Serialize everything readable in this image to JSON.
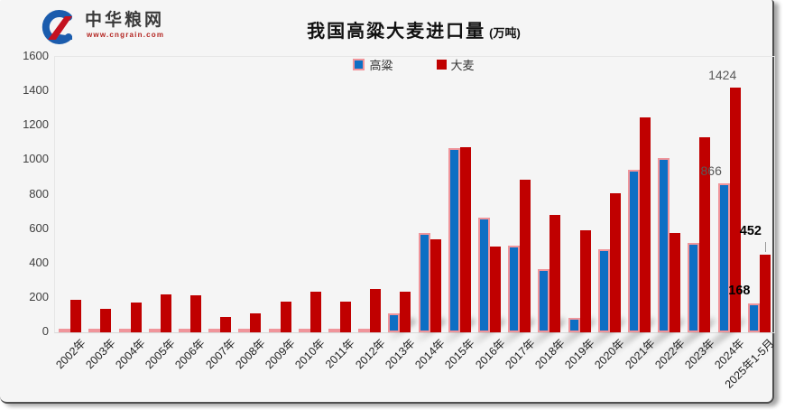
{
  "logo": {
    "name": "中华粮网",
    "url": "www.cngrain.com"
  },
  "chart_data": {
    "type": "bar",
    "title": "我国高粱大麦进口量",
    "title_unit": "(万吨)",
    "ylabel": "",
    "xlabel": "",
    "ylim": [
      0,
      1600
    ],
    "ytick_step": 200,
    "yticks": [
      0,
      200,
      400,
      600,
      800,
      1000,
      1200,
      1400,
      1600
    ],
    "grid": false,
    "legend_position": "top-center",
    "categories": [
      "2002年",
      "2003年",
      "2004年",
      "2005年",
      "2006年",
      "2007年",
      "2008年",
      "2009年",
      "2010年",
      "2011年",
      "2012年",
      "2013年",
      "2014年",
      "2015年",
      "2016年",
      "2017年",
      "2018年",
      "2019年",
      "2020年",
      "2021年",
      "2022年",
      "2023年",
      "2024年",
      "2025年1-5月"
    ],
    "series": [
      {
        "name": "高粱",
        "color": "#0d6fc4",
        "border_color": "#f0959b",
        "values": [
          2,
          2,
          2,
          2,
          2,
          2,
          2,
          2,
          2,
          2,
          5,
          108,
          578,
          1070,
          665,
          506,
          365,
          83,
          481,
          942,
          1014,
          520,
          866,
          168
        ]
      },
      {
        "name": "大麦",
        "color": "#c00000",
        "values": [
          190,
          136,
          171,
          218,
          213,
          91,
          108,
          176,
          237,
          178,
          253,
          234,
          541,
          1073,
          500,
          886,
          682,
          593,
          808,
          1248,
          576,
          1132,
          1424,
          452
        ]
      }
    ],
    "annotations": [
      {
        "category": "2024年",
        "series": "高粱",
        "text": "866",
        "style": "grey"
      },
      {
        "category": "2024年",
        "series": "大麦",
        "text": "1424",
        "style": "grey"
      },
      {
        "category": "2025年1-5月",
        "series": "高粱",
        "text": "168",
        "style": "bold"
      },
      {
        "category": "2025年1-5月",
        "series": "大麦",
        "text": "452",
        "style": "bold",
        "leader": true
      }
    ]
  },
  "colors": {
    "background": "#f5f5f5",
    "sorghum_fill": "#0d6fc4",
    "sorghum_border": "#f0959b",
    "barley_fill": "#c00000",
    "grey_label": "#595959",
    "bold_label": "#000000"
  }
}
